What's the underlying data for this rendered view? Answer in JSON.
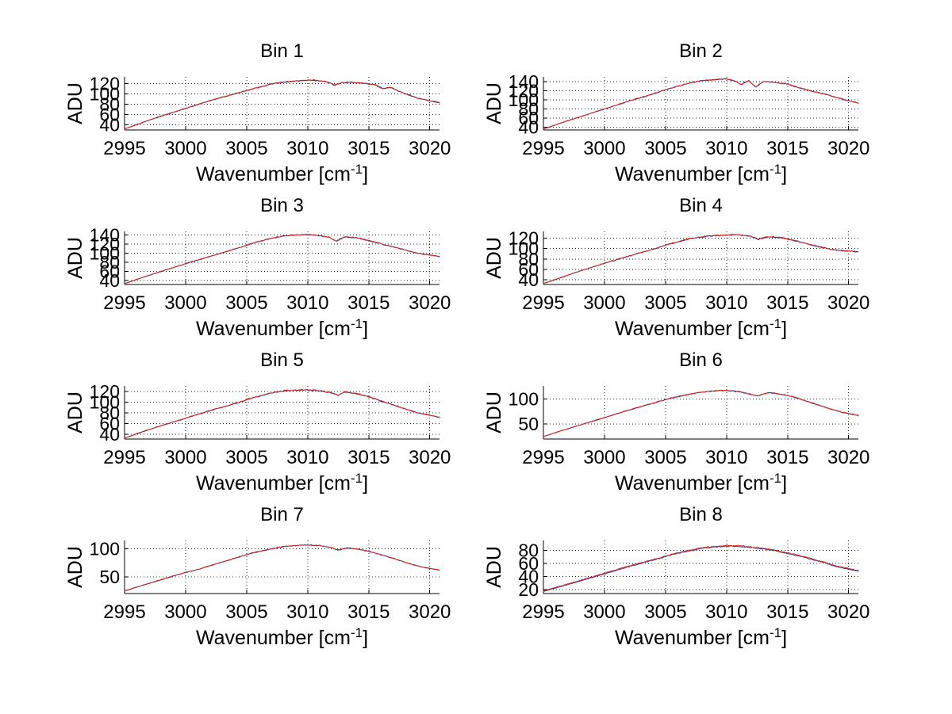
{
  "figure": {
    "background": "#ffffff",
    "text_color": "#000000",
    "grid_style": "dotted"
  },
  "chart_data": [
    {
      "type": "line",
      "title": "Bin 1",
      "xlabel": "Wavenumber [cm^-1]",
      "ylabel": "ADU",
      "xlim": [
        2995,
        3020.8
      ],
      "ylim": [
        30,
        133
      ],
      "x_ticks": [
        2995,
        3000,
        3005,
        3010,
        3015,
        3020
      ],
      "y_ticks": [
        40,
        60,
        80,
        100,
        120
      ],
      "grid": "dotted",
      "anchors": [
        [
          2995,
          32
        ],
        [
          2996.5,
          45
        ],
        [
          2998,
          57
        ],
        [
          3000,
          72
        ],
        [
          3002,
          87
        ],
        [
          3004,
          100
        ],
        [
          3005.5,
          110
        ],
        [
          3007,
          119
        ],
        [
          3008,
          123
        ],
        [
          3009,
          125
        ],
        [
          3010.5,
          127
        ],
        [
          3011.5,
          124
        ],
        [
          3012.2,
          117
        ],
        [
          3012.8,
          122
        ],
        [
          3013.5,
          123
        ],
        [
          3014.5,
          121
        ],
        [
          3015.5,
          118
        ],
        [
          3016.2,
          110
        ],
        [
          3016.8,
          113
        ],
        [
          3017.5,
          105
        ],
        [
          3019,
          92
        ],
        [
          3020.8,
          83
        ]
      ],
      "series": [
        {
          "name": "spectrum-blue",
          "color": "#3b3bad",
          "noise": 2.2,
          "seed": 11,
          "dy": -0.3
        },
        {
          "name": "spectrum-red",
          "color": "#cc2211",
          "noise": 2.2,
          "seed": 21,
          "dy": 0
        }
      ]
    },
    {
      "type": "line",
      "title": "Bin 2",
      "xlabel": "Wavenumber [cm^-1]",
      "ylabel": "ADU",
      "xlim": [
        2995,
        3020.8
      ],
      "ylim": [
        34,
        150
      ],
      "x_ticks": [
        2995,
        3000,
        3005,
        3010,
        3015,
        3020
      ],
      "y_ticks": [
        40,
        60,
        80,
        100,
        120,
        140
      ],
      "grid": "dotted",
      "anchors": [
        [
          2995,
          36
        ],
        [
          2996.5,
          50
        ],
        [
          2998,
          63
        ],
        [
          3000,
          80
        ],
        [
          3002,
          97
        ],
        [
          3004,
          113
        ],
        [
          3005.5,
          126
        ],
        [
          3007,
          137
        ],
        [
          3008,
          142
        ],
        [
          3009,
          144
        ],
        [
          3010,
          146
        ],
        [
          3010.8,
          140
        ],
        [
          3011.2,
          133
        ],
        [
          3011.8,
          142
        ],
        [
          3012.4,
          128
        ],
        [
          3013,
          140
        ],
        [
          3014,
          138
        ],
        [
          3015,
          134
        ],
        [
          3016,
          126
        ],
        [
          3017,
          119
        ],
        [
          3018,
          113
        ],
        [
          3019,
          105
        ],
        [
          3020.8,
          93
        ]
      ],
      "series": [
        {
          "name": "spectrum-blue",
          "color": "#3b3bad",
          "noise": 2.2,
          "seed": 12,
          "dy": -0.3
        },
        {
          "name": "spectrum-red",
          "color": "#cc2211",
          "noise": 2.2,
          "seed": 22,
          "dy": 0
        }
      ]
    },
    {
      "type": "line",
      "title": "Bin 3",
      "xlabel": "Wavenumber [cm^-1]",
      "ylabel": "ADU",
      "xlim": [
        2995,
        3020.8
      ],
      "ylim": [
        31,
        148
      ],
      "x_ticks": [
        2995,
        3000,
        3005,
        3010,
        3015,
        3020
      ],
      "y_ticks": [
        40,
        60,
        80,
        100,
        120,
        140
      ],
      "grid": "dotted",
      "anchors": [
        [
          2995,
          33
        ],
        [
          2996.5,
          47
        ],
        [
          2998,
          60
        ],
        [
          3000,
          77
        ],
        [
          3002,
          93
        ],
        [
          3004,
          109
        ],
        [
          3005.5,
          122
        ],
        [
          3007,
          133
        ],
        [
          3008,
          138
        ],
        [
          3009,
          140
        ],
        [
          3010,
          141
        ],
        [
          3011,
          139
        ],
        [
          3011.8,
          135
        ],
        [
          3012.3,
          126
        ],
        [
          3013,
          136
        ],
        [
          3014,
          134
        ],
        [
          3015,
          128
        ],
        [
          3016,
          121
        ],
        [
          3017,
          114
        ],
        [
          3018,
          107
        ],
        [
          3019,
          100
        ],
        [
          3020.8,
          93
        ]
      ],
      "series": [
        {
          "name": "spectrum-blue",
          "color": "#3b3bad",
          "noise": 2.2,
          "seed": 13,
          "dy": -0.3
        },
        {
          "name": "spectrum-red",
          "color": "#cc2211",
          "noise": 2.2,
          "seed": 23,
          "dy": 0
        }
      ]
    },
    {
      "type": "line",
      "title": "Bin 4",
      "xlabel": "Wavenumber [cm^-1]",
      "ylabel": "ADU",
      "xlim": [
        2995,
        3020.8
      ],
      "ylim": [
        31,
        133
      ],
      "x_ticks": [
        2995,
        3000,
        3005,
        3010,
        3015,
        3020
      ],
      "y_ticks": [
        40,
        60,
        80,
        100,
        120
      ],
      "grid": "dotted",
      "anchors": [
        [
          2995,
          33
        ],
        [
          2996.5,
          45
        ],
        [
          2998,
          57
        ],
        [
          3000,
          72
        ],
        [
          3002,
          86
        ],
        [
          3004,
          99
        ],
        [
          3005.5,
          110
        ],
        [
          3007,
          119
        ],
        [
          3008,
          123
        ],
        [
          3009,
          125
        ],
        [
          3010,
          126
        ],
        [
          3011,
          127
        ],
        [
          3012,
          124
        ],
        [
          3012.6,
          118
        ],
        [
          3013.4,
          123
        ],
        [
          3014.5,
          121
        ],
        [
          3015.5,
          116
        ],
        [
          3016.5,
          110
        ],
        [
          3017.5,
          104
        ],
        [
          3018.5,
          99
        ],
        [
          3019.5,
          96
        ],
        [
          3020.8,
          94
        ]
      ],
      "series": [
        {
          "name": "spectrum-blue",
          "color": "#3b3bad",
          "noise": 2.2,
          "seed": 14,
          "dy": -0.3
        },
        {
          "name": "spectrum-red",
          "color": "#cc2211",
          "noise": 2.2,
          "seed": 24,
          "dy": 0
        }
      ]
    },
    {
      "type": "line",
      "title": "Bin 5",
      "xlabel": "Wavenumber [cm^-1]",
      "ylabel": "ADU",
      "xlim": [
        2995,
        3020.8
      ],
      "ylim": [
        31,
        130
      ],
      "x_ticks": [
        2995,
        3000,
        3005,
        3010,
        3015,
        3020
      ],
      "y_ticks": [
        40,
        60,
        80,
        100,
        120
      ],
      "grid": "dotted",
      "anchors": [
        [
          2995,
          33
        ],
        [
          2996.5,
          45
        ],
        [
          2998,
          56
        ],
        [
          3000,
          70
        ],
        [
          3002,
          84
        ],
        [
          3004,
          97
        ],
        [
          3005.5,
          108
        ],
        [
          3007,
          117
        ],
        [
          3008,
          121
        ],
        [
          3009,
          122
        ],
        [
          3010,
          123
        ],
        [
          3011,
          121
        ],
        [
          3012,
          117
        ],
        [
          3012.5,
          113
        ],
        [
          3013,
          119
        ],
        [
          3014,
          116
        ],
        [
          3015,
          110
        ],
        [
          3016,
          102
        ],
        [
          3017,
          95
        ],
        [
          3018,
          87
        ],
        [
          3019,
          80
        ],
        [
          3020.8,
          72
        ]
      ],
      "series": [
        {
          "name": "spectrum-blue",
          "color": "#3b3bad",
          "noise": 2.2,
          "seed": 15,
          "dy": -0.3
        },
        {
          "name": "spectrum-red",
          "color": "#cc2211",
          "noise": 2.2,
          "seed": 25,
          "dy": 0
        }
      ]
    },
    {
      "type": "line",
      "title": "Bin 6",
      "xlabel": "Wavenumber [cm^-1]",
      "ylabel": "ADU",
      "xlim": [
        2995,
        3020.8
      ],
      "ylim": [
        20,
        126
      ],
      "x_ticks": [
        2995,
        3000,
        3005,
        3010,
        3015,
        3020
      ],
      "y_ticks": [
        50,
        100
      ],
      "grid": "dotted",
      "anchors": [
        [
          2995,
          25
        ],
        [
          2996.5,
          37
        ],
        [
          2998,
          48
        ],
        [
          3000,
          63
        ],
        [
          3002,
          78
        ],
        [
          3004,
          92
        ],
        [
          3005.5,
          102
        ],
        [
          3007,
          110
        ],
        [
          3008,
          114
        ],
        [
          3009,
          116
        ],
        [
          3010,
          117
        ],
        [
          3011,
          115
        ],
        [
          3012,
          109
        ],
        [
          3012.6,
          106
        ],
        [
          3013.4,
          113
        ],
        [
          3014.4,
          110
        ],
        [
          3015.4,
          105
        ],
        [
          3016.4,
          97
        ],
        [
          3017.4,
          89
        ],
        [
          3018.4,
          81
        ],
        [
          3019.4,
          74
        ],
        [
          3020.8,
          67
        ]
      ],
      "series": [
        {
          "name": "spectrum-blue",
          "color": "#3b3bad",
          "noise": 1.8,
          "seed": 16,
          "dy": -0.3
        },
        {
          "name": "spectrum-red",
          "color": "#cc2211",
          "noise": 1.8,
          "seed": 26,
          "dy": 0
        }
      ]
    },
    {
      "type": "line",
      "title": "Bin 7",
      "xlabel": "Wavenumber [cm^-1]",
      "ylabel": "ADU",
      "xlim": [
        2995,
        3020.8
      ],
      "ylim": [
        20,
        115
      ],
      "x_ticks": [
        2995,
        3000,
        3005,
        3010,
        3015,
        3020
      ],
      "y_ticks": [
        50,
        100
      ],
      "grid": "dotted",
      "anchors": [
        [
          2995,
          25
        ],
        [
          2996.5,
          35
        ],
        [
          2998,
          45
        ],
        [
          3000,
          58
        ],
        [
          3001,
          63
        ],
        [
          3002,
          70
        ],
        [
          3004,
          83
        ],
        [
          3005.5,
          93
        ],
        [
          3007,
          100
        ],
        [
          3008,
          104
        ],
        [
          3009,
          106
        ],
        [
          3010,
          107
        ],
        [
          3011,
          106
        ],
        [
          3012,
          102
        ],
        [
          3012.5,
          98
        ],
        [
          3013.3,
          102
        ],
        [
          3014.3,
          99
        ],
        [
          3015.3,
          94
        ],
        [
          3016.3,
          88
        ],
        [
          3017.3,
          81
        ],
        [
          3018.3,
          74
        ],
        [
          3019.3,
          68
        ],
        [
          3020.8,
          62
        ]
      ],
      "series": [
        {
          "name": "spectrum-blue",
          "color": "#3b3bad",
          "noise": 1.3,
          "seed": 17,
          "dy": -0.3
        },
        {
          "name": "spectrum-red",
          "color": "#cc2211",
          "noise": 1.3,
          "seed": 27,
          "dy": 0
        }
      ]
    },
    {
      "type": "line",
      "title": "Bin 8",
      "xlabel": "Wavenumber [cm^-1]",
      "ylabel": "ADU",
      "xlim": [
        2995,
        3020.8
      ],
      "ylim": [
        14,
        95
      ],
      "x_ticks": [
        2995,
        3000,
        3005,
        3010,
        3015,
        3020
      ],
      "y_ticks": [
        20,
        40,
        60,
        80
      ],
      "grid": "dotted",
      "anchors": [
        [
          2995,
          18
        ],
        [
          2996.5,
          26
        ],
        [
          2998,
          34
        ],
        [
          3000,
          45
        ],
        [
          3002,
          56
        ],
        [
          3004,
          66
        ],
        [
          3005.5,
          74
        ],
        [
          3007,
          80
        ],
        [
          3008,
          84
        ],
        [
          3009,
          86
        ],
        [
          3010,
          87
        ],
        [
          3011,
          87
        ],
        [
          3012,
          85
        ],
        [
          3013,
          83
        ],
        [
          3014,
          80
        ],
        [
          3015,
          76
        ],
        [
          3016,
          72
        ],
        [
          3017,
          67
        ],
        [
          3018,
          62
        ],
        [
          3019,
          56
        ],
        [
          3020.8,
          49
        ]
      ],
      "series": [
        {
          "name": "spectrum-blue",
          "color": "#3b3bad",
          "noise": 1.6,
          "seed": 18,
          "dy": -1.0
        },
        {
          "name": "spectrum-red",
          "color": "#cc2211",
          "noise": 1.6,
          "seed": 28,
          "dy": 0
        }
      ]
    }
  ]
}
